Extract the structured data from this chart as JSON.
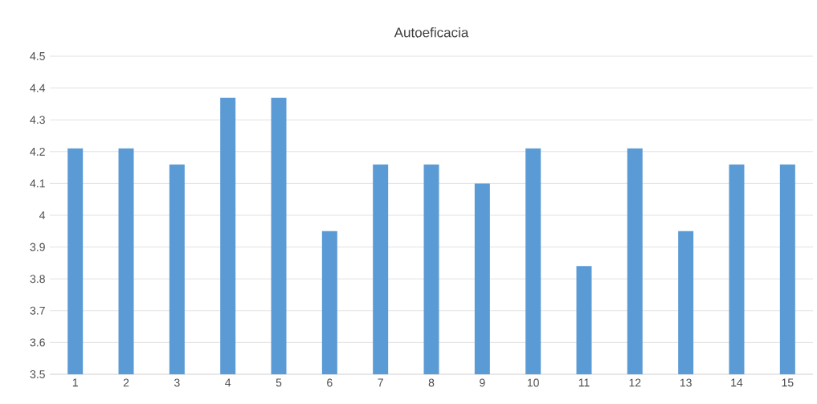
{
  "chart_data": {
    "type": "bar",
    "title": "Autoeficacia",
    "categories": [
      "1",
      "2",
      "3",
      "4",
      "5",
      "6",
      "7",
      "8",
      "9",
      "10",
      "11",
      "12",
      "13",
      "14",
      "15"
    ],
    "values": [
      4.21,
      4.21,
      4.16,
      4.37,
      4.37,
      3.95,
      4.16,
      4.16,
      4.1,
      4.21,
      3.84,
      4.21,
      3.95,
      4.16,
      4.16
    ],
    "color": "#5b9bd5",
    "ylim": [
      3.5,
      4.5
    ],
    "yticks": [
      3.5,
      3.6,
      3.7,
      3.8,
      3.9,
      4,
      4.1,
      4.2,
      4.3,
      4.4,
      4.5
    ],
    "grid": "y"
  }
}
